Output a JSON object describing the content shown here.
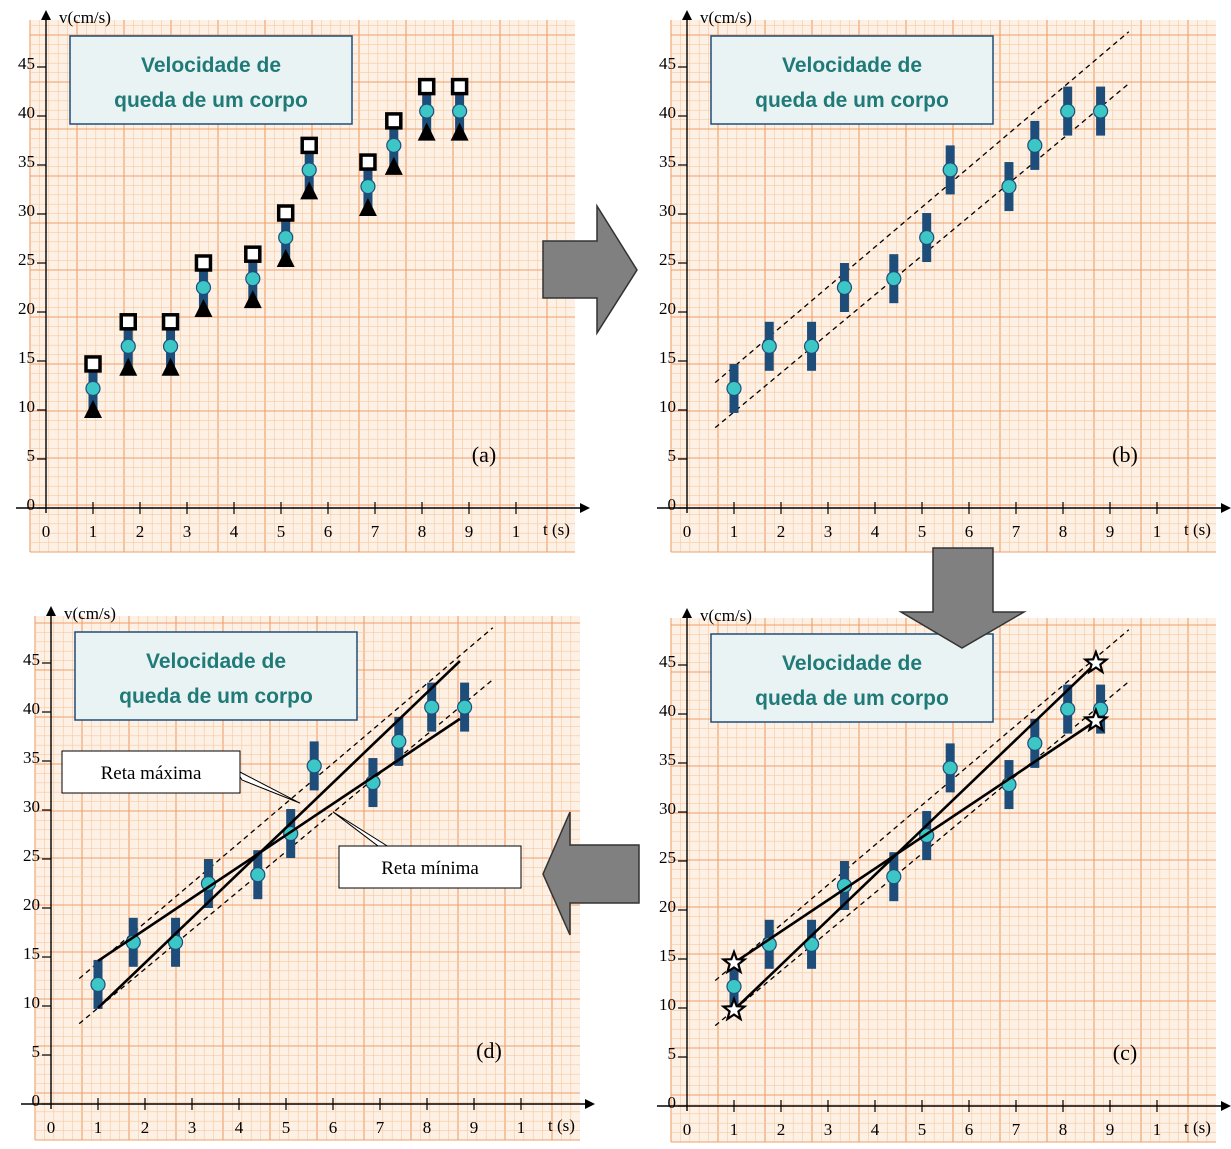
{
  "colors": {
    "grid_minor": "#f7c9a0",
    "grid_major": "#ef9f6a",
    "paper": "#fdf0e4",
    "errorbar": "#1f4d7a",
    "point": "#3cc6c6",
    "title_text": "#1f7a78",
    "title_border": "#1f4d7a",
    "arrow": "#808080"
  },
  "chart_data": [
    {
      "panel": "a",
      "type": "scatter",
      "title": "Velocidade de queda de um corpo",
      "ylabel": "v(cm/s)",
      "xlabel": "t (s)",
      "tag": "(a)",
      "xlim": [
        0,
        10
      ],
      "ylim": [
        0,
        48
      ],
      "x_ticks": [
        "0",
        "1",
        "2",
        "3",
        "4",
        "5",
        "6",
        "7",
        "8",
        "9",
        "1"
      ],
      "y_ticks": [
        "0",
        "5",
        "10",
        "15",
        "20",
        "25",
        "30",
        "35",
        "40",
        "45"
      ],
      "points": [
        {
          "x": 1.0,
          "y": 12.2,
          "err": 2.5
        },
        {
          "x": 1.75,
          "y": 16.5,
          "err": 2.5
        },
        {
          "x": 2.65,
          "y": 16.5,
          "err": 2.5
        },
        {
          "x": 3.35,
          "y": 22.5,
          "err": 2.5
        },
        {
          "x": 4.4,
          "y": 23.4,
          "err": 2.5
        },
        {
          "x": 5.1,
          "y": 27.6,
          "err": 2.5
        },
        {
          "x": 5.6,
          "y": 34.5,
          "err": 2.5
        },
        {
          "x": 6.85,
          "y": 32.8,
          "err": 2.5
        },
        {
          "x": 7.4,
          "y": 37.0,
          "err": 2.5
        },
        {
          "x": 8.1,
          "y": 40.5,
          "err": 2.5
        },
        {
          "x": 8.8,
          "y": 40.5,
          "err": 2.5
        }
      ],
      "show_markers": true
    },
    {
      "panel": "b",
      "type": "scatter",
      "title": "Velocidade de queda de um corpo",
      "ylabel": "v(cm/s)",
      "xlabel": "t (s)",
      "tag": "(b)",
      "xlim": [
        0,
        10
      ],
      "ylim": [
        0,
        48
      ],
      "x_ticks": [
        "0",
        "1",
        "2",
        "3",
        "4",
        "5",
        "6",
        "7",
        "8",
        "9",
        "1"
      ],
      "y_ticks": [
        "0",
        "5",
        "10",
        "15",
        "20",
        "25",
        "30",
        "35",
        "40",
        "45"
      ],
      "points": "same_as_a",
      "envelope": {
        "upper": {
          "x": [
            0.6,
            9.4
          ],
          "y": [
            12.8,
            48.6
          ]
        },
        "lower": {
          "x": [
            0.6,
            9.4
          ],
          "y": [
            8.2,
            43.3
          ]
        }
      }
    },
    {
      "panel": "c",
      "type": "scatter",
      "title": "Velocidade de queda de um corpo",
      "ylabel": "v(cm/s)",
      "xlabel": "t (s)",
      "tag": "(c)",
      "xlim": [
        0,
        10
      ],
      "ylim": [
        0,
        48
      ],
      "x_ticks": [
        "0",
        "1",
        "2",
        "3",
        "4",
        "5",
        "6",
        "7",
        "8",
        "9",
        "1"
      ],
      "y_ticks": [
        "0",
        "5",
        "10",
        "15",
        "20",
        "25",
        "30",
        "35",
        "40",
        "45"
      ],
      "points": "same_as_a",
      "envelope": {
        "upper": {
          "x": [
            0.6,
            9.4
          ],
          "y": [
            12.8,
            48.6
          ]
        },
        "lower": {
          "x": [
            0.6,
            9.4
          ],
          "y": [
            8.2,
            43.3
          ]
        }
      },
      "lines": [
        {
          "x": [
            1.0,
            8.7
          ],
          "y": [
            9.8,
            45.2
          ]
        },
        {
          "x": [
            1.0,
            8.7
          ],
          "y": [
            14.6,
            39.3
          ]
        }
      ],
      "stars": [
        {
          "x": 1.0,
          "y": 9.8
        },
        {
          "x": 1.0,
          "y": 14.6
        },
        {
          "x": 8.7,
          "y": 45.2
        },
        {
          "x": 8.7,
          "y": 39.3
        }
      ]
    },
    {
      "panel": "d",
      "type": "scatter",
      "title": "Velocidade de queda de um corpo",
      "ylabel": "v(cm/s)",
      "xlabel": "t (s)",
      "tag": "(d)",
      "xlim": [
        0,
        10
      ],
      "ylim": [
        0,
        48
      ],
      "x_ticks": [
        "0",
        "1",
        "2",
        "3",
        "4",
        "5",
        "6",
        "7",
        "8",
        "9",
        "1"
      ],
      "y_ticks": [
        "0",
        "5",
        "10",
        "15",
        "20",
        "25",
        "30",
        "35",
        "40",
        "45"
      ],
      "points": "same_as_a",
      "envelope": {
        "upper": {
          "x": [
            0.6,
            9.4
          ],
          "y": [
            12.8,
            48.6
          ]
        },
        "lower": {
          "x": [
            0.6,
            9.4
          ],
          "y": [
            8.2,
            43.3
          ]
        }
      },
      "lines": [
        {
          "x": [
            1.0,
            8.7
          ],
          "y": [
            9.8,
            45.2
          ]
        },
        {
          "x": [
            1.0,
            8.7
          ],
          "y": [
            14.6,
            39.3
          ]
        }
      ],
      "callouts": [
        {
          "text": "Reta máxima",
          "target_x": 5.3,
          "target_y": 30.7
        },
        {
          "text": "Reta mínima",
          "target_x": 6.0,
          "target_y": 29.8
        }
      ]
    }
  ]
}
